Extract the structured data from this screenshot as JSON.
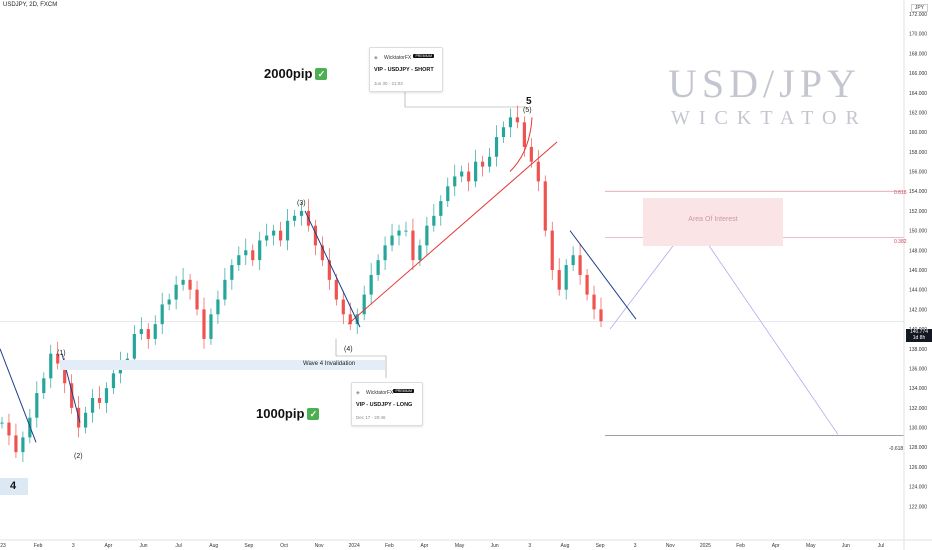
{
  "header": {
    "symbol_line": "USDJPY, 2D, FXCM",
    "currency": "JPY"
  },
  "watermark": {
    "title": "USD/JPY",
    "subtitle": "WICKTATOR"
  },
  "cards": [
    {
      "brand": "WicktatorFX",
      "badge": "PREMIUM",
      "title": "VIP - USDJPY - SHORT",
      "date": "Jun 30 · 21:03"
    },
    {
      "brand": "WicktatorFX",
      "badge": "PREMIUM",
      "title": "VIP - USDJPY - LONG",
      "date": "Dec 17 · 20:46"
    }
  ],
  "pip_labels": {
    "top": "2000pip",
    "bottom": "1000pip",
    "check": "✓"
  },
  "annotations": {
    "area_of_interest": "Area Of Interest",
    "wave4_invalidation": "Wave 4 Invalidation",
    "wave_labels": {
      "w1": "(1)",
      "w2": "(2)",
      "w3": "(3)",
      "w4": "(4)",
      "w5_big": "5",
      "w5": "(5)",
      "box4": "4"
    },
    "fib": {
      "f618": "0.618",
      "f382": "0.382",
      "fn618": "-0.618"
    }
  },
  "current_price": {
    "value": "140.774",
    "countdown": "1d 8h"
  },
  "colors": {
    "up": "#26a69a",
    "down": "#ef5350",
    "trend_red": "#e53935",
    "trend_blue": "#1e3f8c",
    "projection": "#b3a8f0",
    "aoi": "#fbe4e6"
  },
  "chart_data": {
    "type": "candlestick",
    "timeframe": "2D",
    "ylim": [
      120,
      172
    ],
    "y_ticks": [
      122,
      124,
      126,
      128,
      130,
      132,
      134,
      136,
      138,
      140,
      142,
      144,
      146,
      148,
      150,
      152,
      154,
      156,
      158,
      160,
      162,
      164,
      166,
      168,
      170,
      172
    ],
    "x_ticks": [
      "23",
      "Feb",
      "3",
      "Apr",
      "Jun",
      "Jul",
      "Aug",
      "Sep",
      "Oct",
      "Nov",
      "2024",
      "Feb",
      "Apr",
      "May",
      "Jun",
      "3",
      "Aug",
      "Sep",
      "3",
      "Nov",
      "2025",
      "Feb",
      "Apr",
      "May",
      "Jun",
      "Jul"
    ],
    "price_path": [
      [
        130.5,
        129.2,
        127.5,
        129.0,
        131.0,
        133.5,
        135.0,
        137.5,
        136.5,
        134.5,
        132.0,
        130.0,
        131.5,
        133.0,
        132.5,
        134.0,
        135.5,
        136.5,
        137.0,
        139.5,
        140.0,
        139.0,
        140.5,
        142.5,
        143.0,
        144.5,
        145.0,
        144.0,
        142.0,
        139.0,
        141.5,
        143.0,
        145.0,
        146.5,
        147.5,
        148.0,
        147.0,
        149.0,
        149.5,
        150.0,
        149.0,
        151.0,
        151.5,
        152.0,
        150.5,
        148.5,
        147.0,
        145.0,
        143.0,
        141.5,
        140.5,
        141.5,
        143.5,
        145.5,
        147.0,
        148.5,
        149.5,
        150.0,
        150.0,
        147.0,
        148.5,
        150.5,
        151.5,
        153.0,
        154.5,
        155.5,
        156.0,
        155.0,
        157.0,
        156.5,
        157.5,
        159.5,
        160.5,
        161.5,
        161.0,
        158.5,
        157.0,
        155.0,
        150.0,
        146.0,
        144.0,
        146.5,
        147.5,
        145.5,
        143.5,
        142.0,
        140.8
      ]
    ],
    "fib_levels": {
      "0.618": 154.0,
      "0.382": 149.3,
      "-0.618": 129.2
    },
    "current_price": 140.774,
    "wave4_invalidation": 138.0,
    "projection_path": [
      [
        140.0,
        151.0
      ],
      [
        151.0,
        129.3
      ]
    ]
  }
}
